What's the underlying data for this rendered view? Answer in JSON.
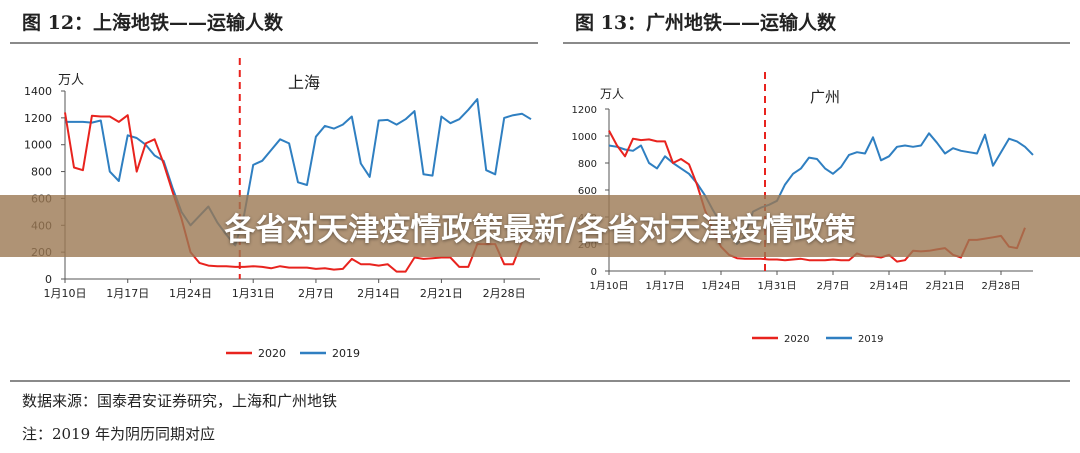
{
  "colors": {
    "series_2020": "#e8231e",
    "series_2019": "#2f7fc1",
    "divider": "#e8231e",
    "overlay": "#9b7852"
  },
  "overlay_title": "各省对天津疫情政策最新/各省对天津疫情政策",
  "footer": {
    "source": "数据来源：国泰君安证券研究，上海和广州地铁",
    "note": "注：2019 年为阴历同期对应"
  },
  "chart_data": [
    {
      "type": "line",
      "title": "图 12：上海地铁——运输人数",
      "region_label": "上海",
      "y_unit": "万人",
      "ylim": [
        0,
        1400
      ],
      "y_ticks": [
        0,
        200,
        400,
        600,
        800,
        1000,
        1200,
        1400
      ],
      "x_tick_labels": [
        "1月10日",
        "1月17日",
        "1月24日",
        "1月31日",
        "2月7日",
        "2月14日",
        "2月21日",
        "2月28日"
      ],
      "x_tick_day_index": [
        0,
        7,
        14,
        21,
        28,
        35,
        42,
        49
      ],
      "x_range": [
        0,
        53
      ],
      "divider_day_index": 19.5,
      "legend_position": "bottom",
      "grid": false,
      "series": [
        {
          "name": "2020",
          "values": [
            1240,
            830,
            810,
            1215,
            1210,
            1210,
            1170,
            1220,
            800,
            1010,
            1040,
            860,
            650,
            450,
            200,
            120,
            100,
            95,
            95,
            90,
            90,
            95,
            90,
            80,
            95,
            85,
            85,
            85,
            75,
            80,
            70,
            75,
            150,
            110,
            110,
            100,
            110,
            55,
            55,
            160,
            150,
            155,
            160,
            160,
            90,
            90,
            260,
            260,
            260,
            110,
            110,
            280
          ]
        },
        {
          "name": "2019",
          "values": [
            1170,
            1170,
            1170,
            1165,
            1180,
            800,
            730,
            1070,
            1050,
            1000,
            920,
            880,
            680,
            500,
            400,
            470,
            540,
            420,
            330,
            250,
            480,
            850,
            880,
            960,
            1040,
            1010,
            720,
            700,
            1060,
            1140,
            1120,
            1150,
            1210,
            860,
            760,
            1180,
            1185,
            1150,
            1190,
            1250,
            780,
            770,
            1210,
            1160,
            1190,
            1260,
            1340,
            810,
            780,
            1200,
            1220,
            1230,
            1190
          ]
        }
      ]
    },
    {
      "type": "line",
      "title": "图 13：广州地铁——运输人数",
      "region_label": "广州",
      "y_unit": "万人",
      "ylim": [
        0,
        1200
      ],
      "y_ticks": [
        0,
        200,
        400,
        600,
        800,
        1000,
        1200
      ],
      "x_tick_labels": [
        "1月10日",
        "1月17日",
        "1月24日",
        "1月31日",
        "2月7日",
        "2月14日",
        "2月21日",
        "2月28日"
      ],
      "x_tick_day_index": [
        0,
        7,
        14,
        21,
        28,
        35,
        42,
        49
      ],
      "x_range": [
        0,
        53
      ],
      "divider_day_index": 19.5,
      "legend_position": "bottom",
      "grid": false,
      "series": [
        {
          "name": "2020",
          "values": [
            1040,
            930,
            850,
            980,
            970,
            975,
            960,
            960,
            800,
            830,
            790,
            640,
            450,
            300,
            180,
            120,
            95,
            90,
            90,
            90,
            85,
            85,
            80,
            85,
            90,
            80,
            80,
            80,
            85,
            80,
            80,
            130,
            110,
            110,
            100,
            120,
            70,
            80,
            150,
            145,
            150,
            160,
            170,
            120,
            100,
            230,
            230,
            240,
            250,
            260,
            180,
            170,
            320
          ]
        },
        {
          "name": "2019",
          "values": [
            930,
            920,
            900,
            890,
            930,
            800,
            760,
            850,
            800,
            760,
            720,
            650,
            560,
            450,
            350,
            280,
            200,
            260,
            440,
            470,
            490,
            520,
            640,
            720,
            760,
            840,
            830,
            760,
            720,
            770,
            860,
            880,
            870,
            990,
            820,
            850,
            920,
            930,
            920,
            930,
            1020,
            950,
            870,
            910,
            890,
            880,
            870,
            1010,
            780,
            880,
            980,
            960,
            920,
            860
          ]
        }
      ]
    }
  ]
}
